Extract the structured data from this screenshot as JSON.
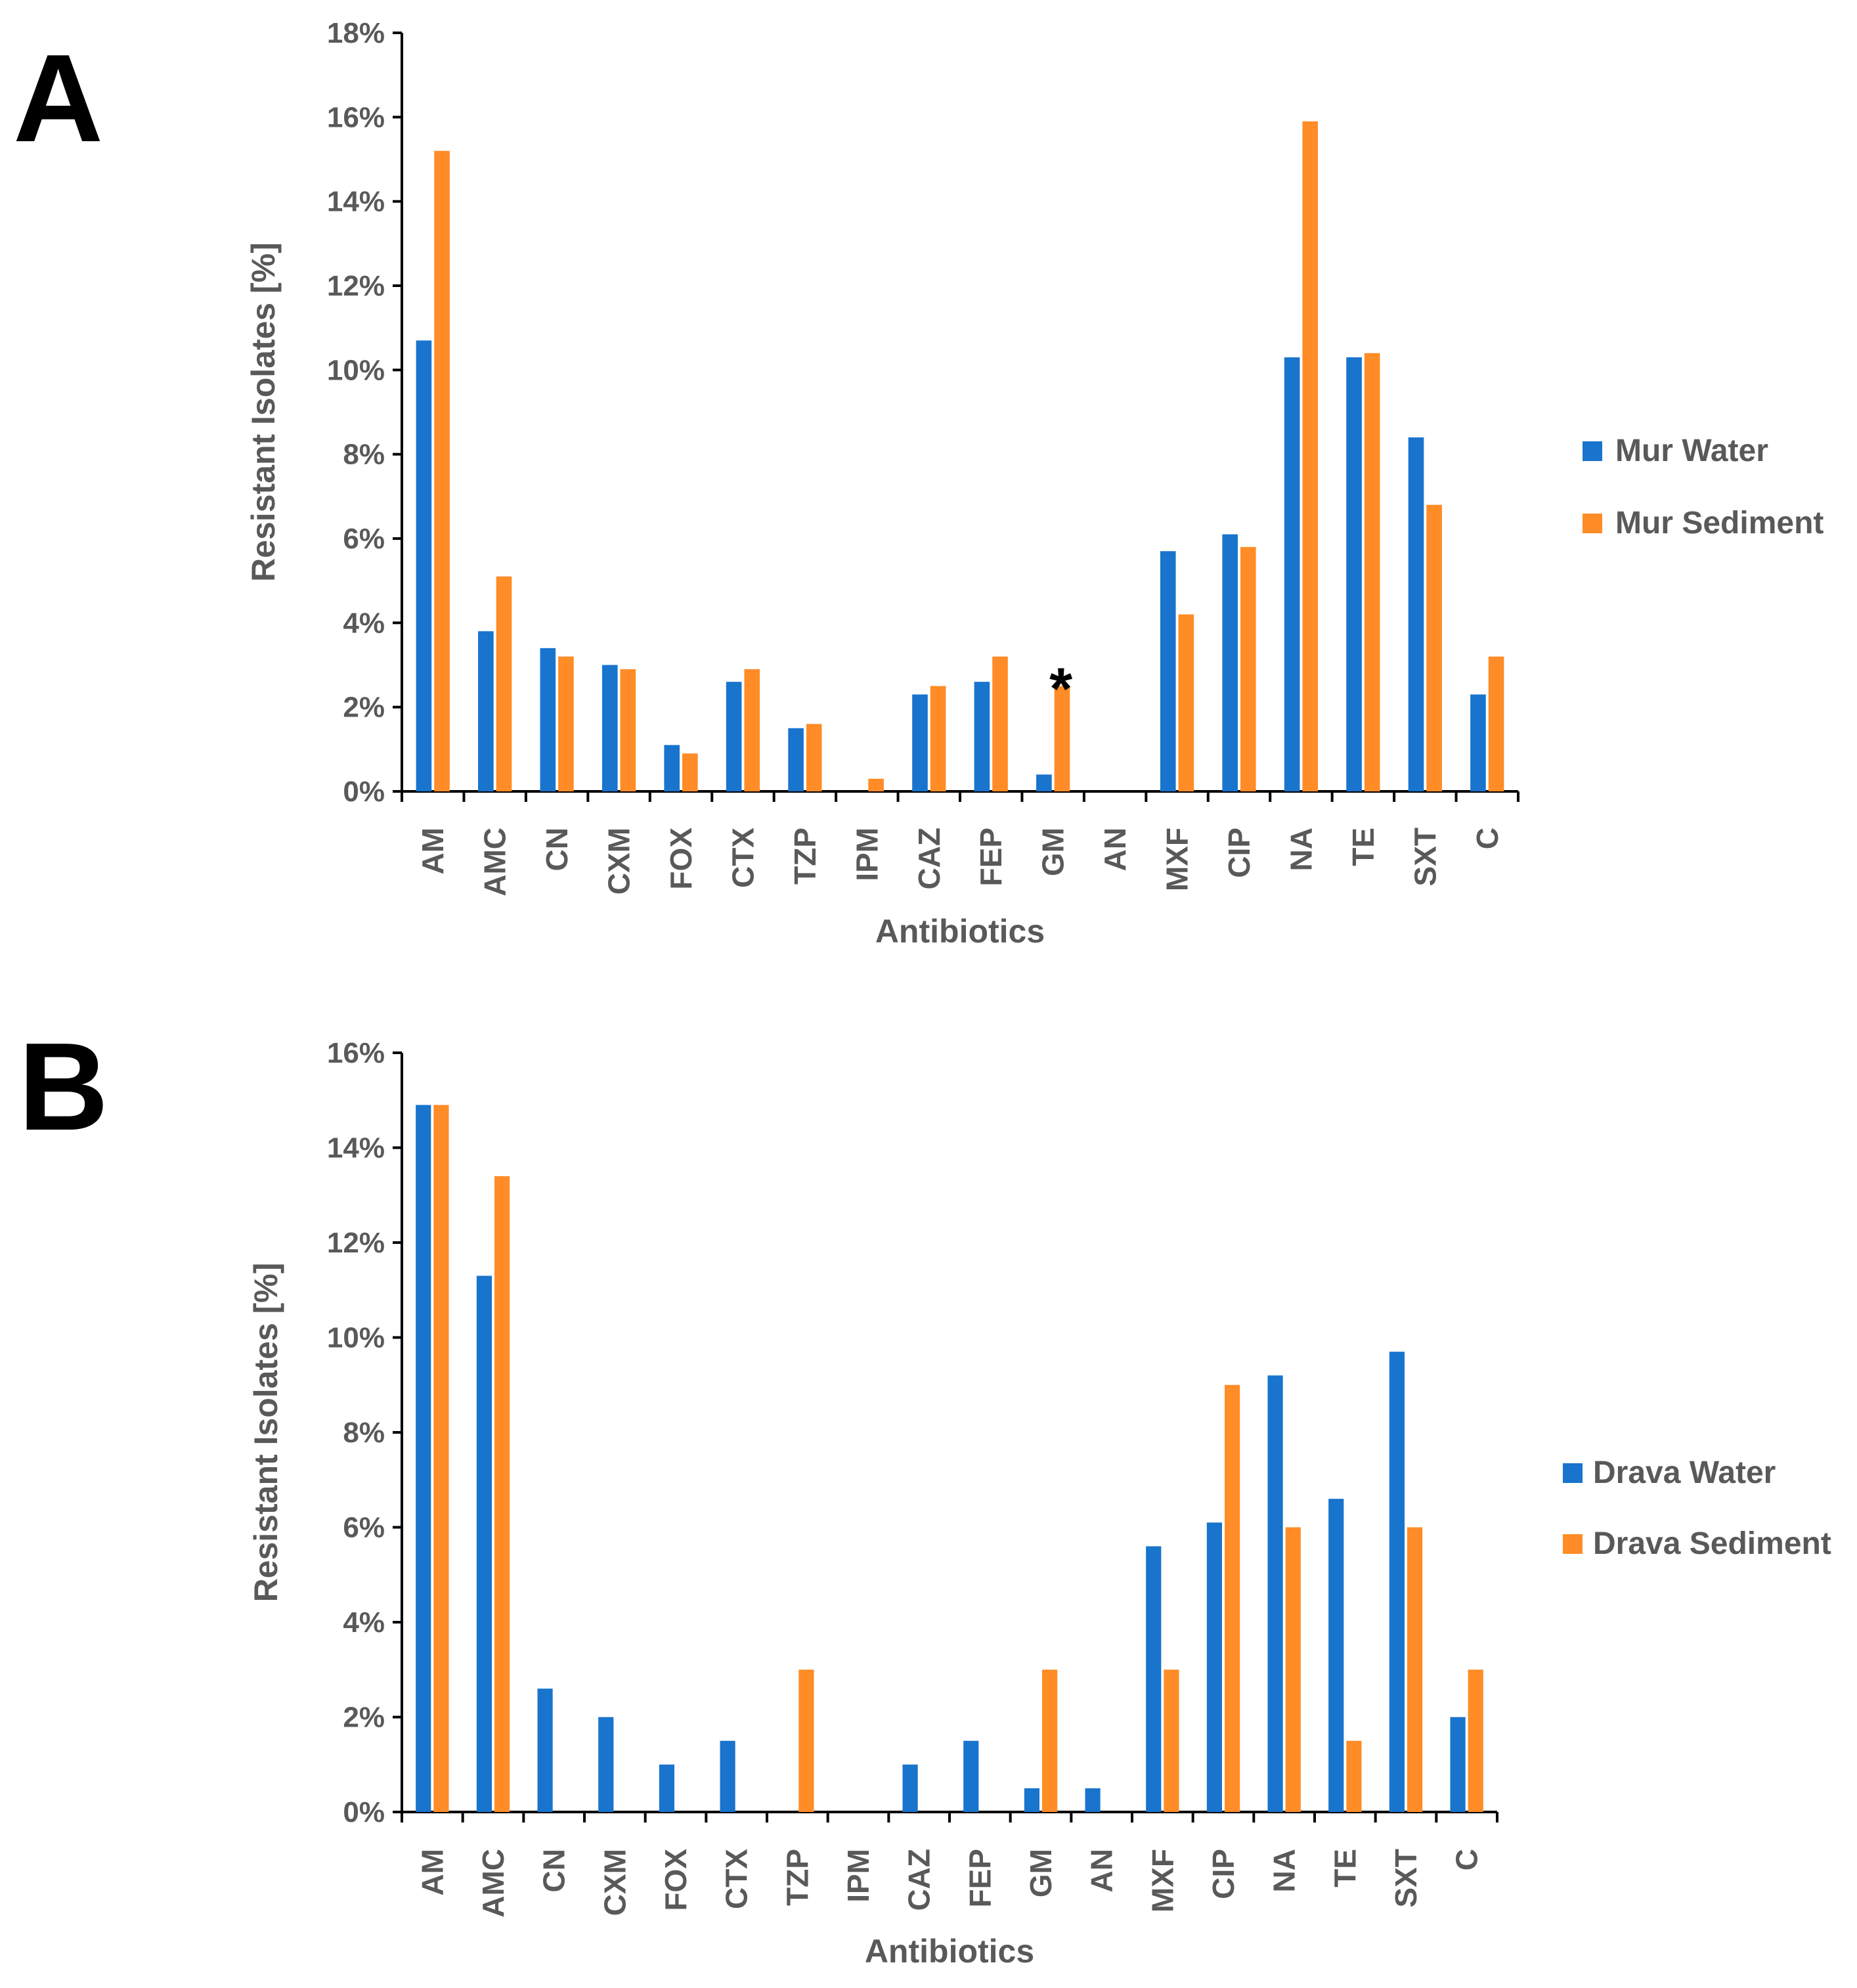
{
  "chart_data": [
    {
      "panel_label": "A",
      "type": "bar",
      "xlabel": "Antibiotics",
      "ylabel": "Resistant Isolates [%]",
      "ylim": [
        0,
        18
      ],
      "y_ticks": [
        0,
        2,
        4,
        6,
        8,
        10,
        12,
        14,
        16,
        18
      ],
      "y_tick_labels": [
        "0%",
        "2%",
        "4%",
        "6%",
        "8%",
        "10%",
        "12%",
        "14%",
        "16%",
        "18%"
      ],
      "categories": [
        "AM",
        "AMC",
        "CN",
        "CXM",
        "FOX",
        "CTX",
        "TZP",
        "IPM",
        "CAZ",
        "FEP",
        "GM",
        "AN",
        "MXF",
        "CIP",
        "NA",
        "TE",
        "SXT",
        "C"
      ],
      "series": [
        {
          "name": "Mur Water",
          "color": "#1874CD",
          "values": [
            10.7,
            3.8,
            3.4,
            3.0,
            1.1,
            2.6,
            1.5,
            0,
            2.3,
            2.6,
            0.4,
            0,
            5.7,
            6.1,
            10.3,
            10.3,
            8.4,
            2.3
          ]
        },
        {
          "name": "Mur Sediment",
          "color": "#FF8C26",
          "values": [
            15.2,
            5.1,
            3.2,
            2.9,
            0.9,
            2.9,
            1.6,
            0.3,
            2.5,
            3.2,
            2.5,
            0,
            4.2,
            5.8,
            15.9,
            10.4,
            6.8,
            3.2
          ]
        }
      ],
      "annotations": [
        {
          "category": "GM",
          "text": "*"
        }
      ],
      "legend_position": "right",
      "grid": false
    },
    {
      "panel_label": "B",
      "type": "bar",
      "xlabel": "Antibiotics",
      "ylabel": "Resistant Isolates [%]",
      "ylim": [
        0,
        16
      ],
      "y_ticks": [
        0,
        2,
        4,
        6,
        8,
        10,
        12,
        14,
        16
      ],
      "y_tick_labels": [
        "0%",
        "2%",
        "4%",
        "6%",
        "8%",
        "10%",
        "12%",
        "14%",
        "16%"
      ],
      "categories": [
        "AM",
        "AMC",
        "CN",
        "CXM",
        "FOX",
        "CTX",
        "TZP",
        "IPM",
        "CAZ",
        "FEP",
        "GM",
        "AN",
        "MXF",
        "CIP",
        "NA",
        "TE",
        "SXT",
        "C"
      ],
      "series": [
        {
          "name": "Drava Water",
          "color": "#1874CD",
          "values": [
            14.9,
            11.3,
            2.6,
            2.0,
            1.0,
            1.5,
            0,
            0,
            1.0,
            1.5,
            0.5,
            0.5,
            5.6,
            6.1,
            9.2,
            6.6,
            9.7,
            2.0
          ]
        },
        {
          "name": "Drava Sediment",
          "color": "#FF8C26",
          "values": [
            14.9,
            13.4,
            0,
            0,
            0,
            0,
            3.0,
            0,
            0,
            0,
            3.0,
            0,
            3.0,
            9.0,
            6.0,
            1.5,
            6.0,
            3.0
          ]
        }
      ],
      "annotations": [],
      "legend_position": "right",
      "grid": false
    }
  ]
}
